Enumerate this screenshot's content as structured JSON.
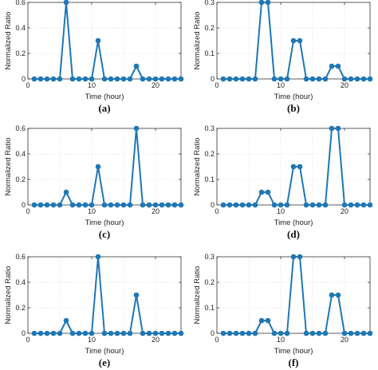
{
  "chart_data": [
    {
      "type": "line",
      "caption": "(a)",
      "xlabel": "Time (hour)",
      "ylabel": "Normalized Ratio",
      "xlim": [
        0,
        24
      ],
      "ylim": [
        0,
        0.6
      ],
      "xticks": [
        0,
        10,
        20
      ],
      "yticks": [
        0,
        0.2,
        0.4,
        0.6
      ],
      "ytick_labels": [
        "0",
        "0.2",
        "0.4",
        "0.6"
      ],
      "grid": true,
      "marker": "circle",
      "color": "#1f77b4",
      "x": [
        1,
        2,
        3,
        4,
        5,
        6,
        7,
        8,
        9,
        10,
        11,
        12,
        13,
        14,
        15,
        16,
        17,
        18,
        19,
        20,
        21,
        22,
        23,
        24
      ],
      "y": [
        0,
        0,
        0,
        0,
        0,
        0.6,
        0,
        0,
        0,
        0,
        0.3,
        0,
        0,
        0,
        0,
        0,
        0.1,
        0,
        0,
        0,
        0,
        0,
        0,
        0
      ]
    },
    {
      "type": "line",
      "caption": "(b)",
      "xlabel": "Time (hour)",
      "ylabel": "Normalized Ratio",
      "xlim": [
        0,
        24
      ],
      "ylim": [
        0,
        0.3
      ],
      "xticks": [
        0,
        10,
        20
      ],
      "yticks": [
        0,
        0.1,
        0.2,
        0.3
      ],
      "ytick_labels": [
        "0",
        "0.1",
        "0.2",
        "0.3"
      ],
      "grid": true,
      "marker": "circle",
      "color": "#1f77b4",
      "x": [
        1,
        2,
        3,
        4,
        5,
        6,
        7,
        8,
        9,
        10,
        11,
        12,
        13,
        14,
        15,
        16,
        17,
        18,
        19,
        20,
        21,
        22,
        23,
        24
      ],
      "y": [
        0,
        0,
        0,
        0,
        0,
        0,
        0.3,
        0.3,
        0,
        0,
        0,
        0.15,
        0.15,
        0,
        0,
        0,
        0,
        0.05,
        0.05,
        0,
        0,
        0,
        0,
        0
      ]
    },
    {
      "type": "line",
      "caption": "(c)",
      "xlabel": "Time (hour)",
      "ylabel": "Normalized Ratio",
      "xlim": [
        0,
        24
      ],
      "ylim": [
        0,
        0.6
      ],
      "xticks": [
        0,
        10,
        20
      ],
      "yticks": [
        0,
        0.2,
        0.4,
        0.6
      ],
      "ytick_labels": [
        "0",
        "0.2",
        "0.4",
        "0.6"
      ],
      "grid": true,
      "marker": "circle",
      "color": "#1f77b4",
      "x": [
        1,
        2,
        3,
        4,
        5,
        6,
        7,
        8,
        9,
        10,
        11,
        12,
        13,
        14,
        15,
        16,
        17,
        18,
        19,
        20,
        21,
        22,
        23,
        24
      ],
      "y": [
        0,
        0,
        0,
        0,
        0,
        0.1,
        0,
        0,
        0,
        0,
        0.3,
        0,
        0,
        0,
        0,
        0,
        0.6,
        0,
        0,
        0,
        0,
        0,
        0,
        0
      ]
    },
    {
      "type": "line",
      "caption": "(d)",
      "xlabel": "Time (hour)",
      "ylabel": "Normalized Ratio",
      "xlim": [
        0,
        24
      ],
      "ylim": [
        0,
        0.3
      ],
      "xticks": [
        0,
        10,
        20
      ],
      "yticks": [
        0,
        0.1,
        0.2,
        0.3
      ],
      "ytick_labels": [
        "0",
        "0.1",
        "0.2",
        "0.3"
      ],
      "grid": true,
      "marker": "circle",
      "color": "#1f77b4",
      "x": [
        1,
        2,
        3,
        4,
        5,
        6,
        7,
        8,
        9,
        10,
        11,
        12,
        13,
        14,
        15,
        16,
        17,
        18,
        19,
        20,
        21,
        22,
        23,
        24
      ],
      "y": [
        0,
        0,
        0,
        0,
        0,
        0,
        0.05,
        0.05,
        0,
        0,
        0,
        0.15,
        0.15,
        0,
        0,
        0,
        0,
        0.3,
        0.3,
        0,
        0,
        0,
        0,
        0
      ]
    },
    {
      "type": "line",
      "caption": "(e)",
      "xlabel": "Time (hour)",
      "ylabel": "Normalized Ratio",
      "xlim": [
        0,
        24
      ],
      "ylim": [
        0,
        0.6
      ],
      "xticks": [
        0,
        10,
        20
      ],
      "yticks": [
        0,
        0.2,
        0.4,
        0.6
      ],
      "ytick_labels": [
        "0",
        "0.2",
        "0.4",
        "0.6"
      ],
      "grid": true,
      "marker": "circle",
      "color": "#1f77b4",
      "x": [
        1,
        2,
        3,
        4,
        5,
        6,
        7,
        8,
        9,
        10,
        11,
        12,
        13,
        14,
        15,
        16,
        17,
        18,
        19,
        20,
        21,
        22,
        23,
        24
      ],
      "y": [
        0,
        0,
        0,
        0,
        0,
        0.1,
        0,
        0,
        0,
        0,
        0.6,
        0,
        0,
        0,
        0,
        0,
        0.3,
        0,
        0,
        0,
        0,
        0,
        0,
        0
      ]
    },
    {
      "type": "line",
      "caption": "(f)",
      "xlabel": "Time (hour)",
      "ylabel": "Normalized Ratio",
      "xlim": [
        0,
        24
      ],
      "ylim": [
        0,
        0.3
      ],
      "xticks": [
        0,
        10,
        20
      ],
      "yticks": [
        0,
        0.1,
        0.2,
        0.3
      ],
      "ytick_labels": [
        "0",
        "0.1",
        "0.2",
        "0.3"
      ],
      "grid": true,
      "marker": "circle",
      "color": "#1f77b4",
      "x": [
        1,
        2,
        3,
        4,
        5,
        6,
        7,
        8,
        9,
        10,
        11,
        12,
        13,
        14,
        15,
        16,
        17,
        18,
        19,
        20,
        21,
        22,
        23,
        24
      ],
      "y": [
        0,
        0,
        0,
        0,
        0,
        0,
        0.05,
        0.05,
        0,
        0,
        0,
        0.3,
        0.3,
        0,
        0,
        0,
        0,
        0.15,
        0.15,
        0,
        0,
        0,
        0,
        0
      ]
    }
  ]
}
